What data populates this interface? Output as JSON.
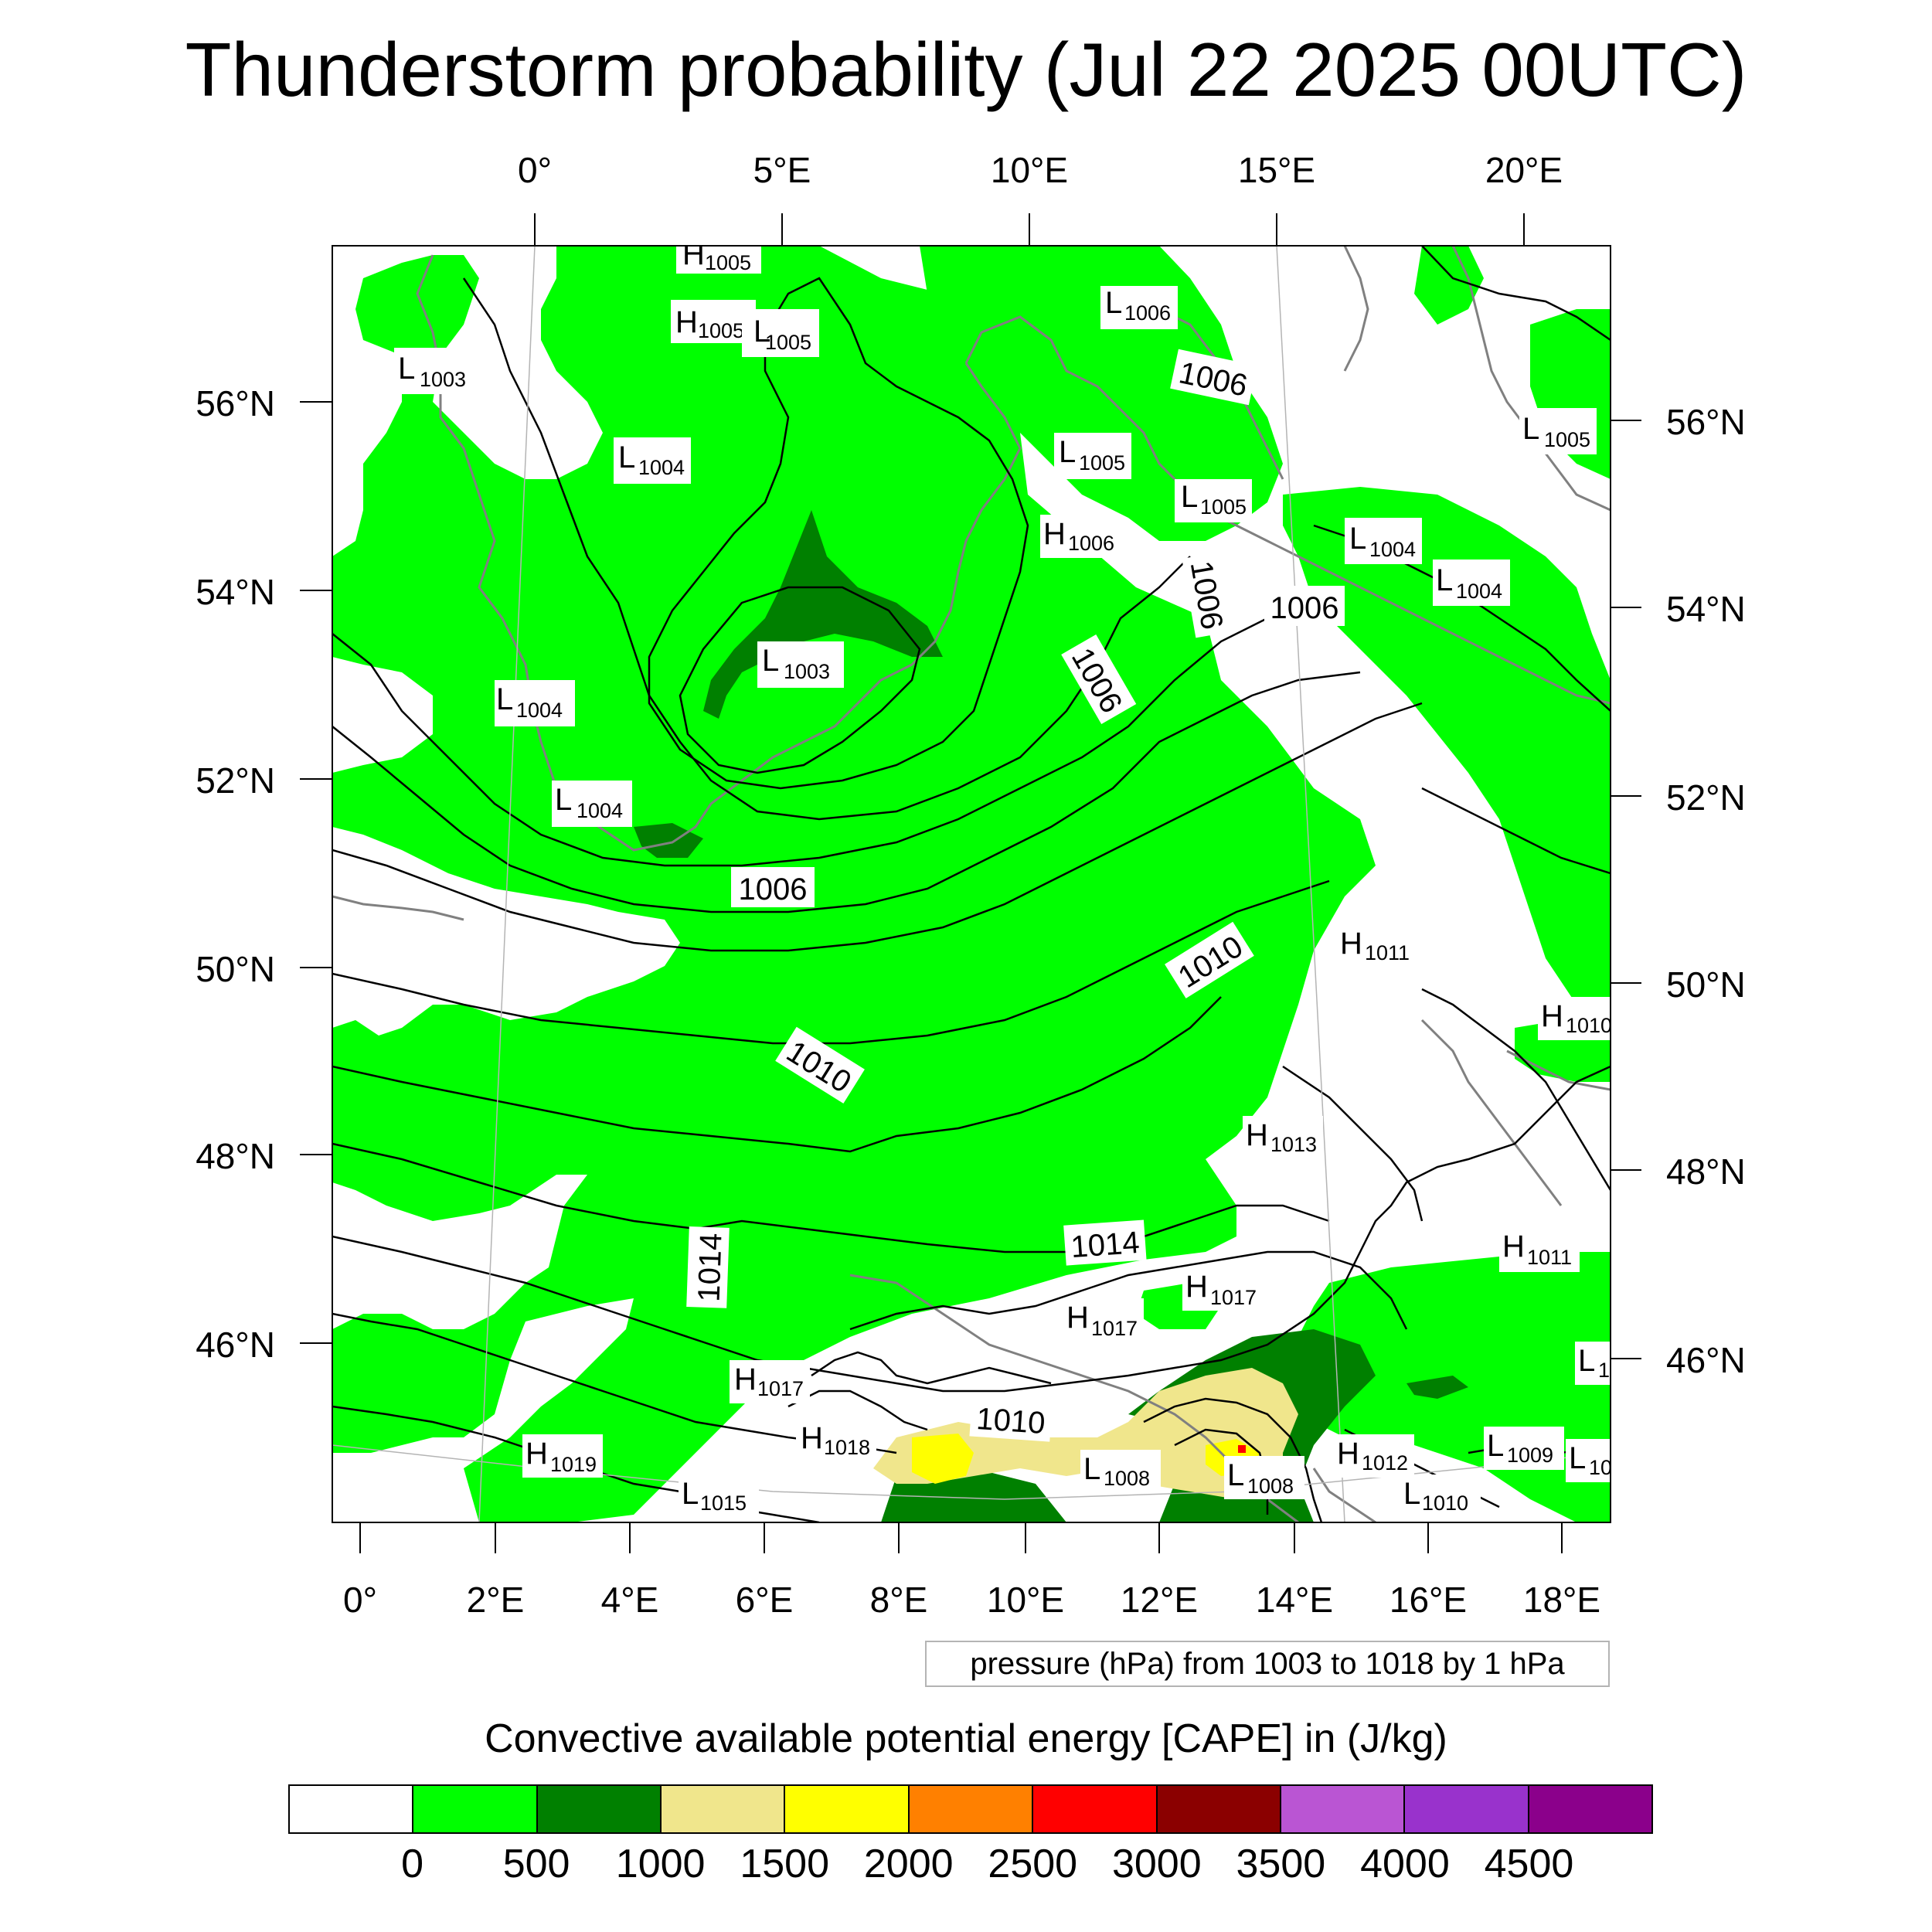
{
  "title": "Thunderstorm probability (Jul 22 2025 00UTC)",
  "top_lon_labels": [
    "0°",
    "5°E",
    "10°E",
    "15°E",
    "20°E"
  ],
  "bottom_lon_labels": [
    "0°",
    "2°E",
    "4°E",
    "6°E",
    "8°E",
    "10°E",
    "12°E",
    "14°E",
    "16°E",
    "18°E"
  ],
  "left_lat_labels": [
    "56°N",
    "54°N",
    "52°N",
    "50°N",
    "48°N",
    "46°N"
  ],
  "right_lat_labels": [
    "56°N",
    "54°N",
    "52°N",
    "50°N",
    "48°N",
    "46°N"
  ],
  "pressure_centers": [
    {
      "type": "H",
      "value": "1005"
    },
    {
      "type": "H",
      "value": "1005"
    },
    {
      "type": "L",
      "value": "1005"
    },
    {
      "type": "L",
      "value": "1006"
    },
    {
      "type": "L",
      "value": "1003"
    },
    {
      "type": "L",
      "value": "1004"
    },
    {
      "type": "L",
      "value": "1005"
    },
    {
      "type": "L",
      "value": "1005"
    },
    {
      "type": "H",
      "value": "1006"
    },
    {
      "type": "L",
      "value": "1004"
    },
    {
      "type": "L",
      "value": "1004"
    },
    {
      "type": "L",
      "value": "1005"
    },
    {
      "type": "L",
      "value": "1003"
    },
    {
      "type": "L",
      "value": "1004"
    },
    {
      "type": "L",
      "value": "1004"
    },
    {
      "type": "H",
      "value": "1011"
    },
    {
      "type": "H",
      "value": "1010"
    },
    {
      "type": "H",
      "value": "1013"
    },
    {
      "type": "H",
      "value": "1011"
    },
    {
      "type": "H",
      "value": "1017"
    },
    {
      "type": "H",
      "value": "1017"
    },
    {
      "type": "H",
      "value": "1017"
    },
    {
      "type": "H",
      "value": "1018"
    },
    {
      "type": "H",
      "value": "1019"
    },
    {
      "type": "L",
      "value": "1015"
    },
    {
      "type": "L",
      "value": "1008"
    },
    {
      "type": "L",
      "value": "1008"
    },
    {
      "type": "H",
      "value": "1012"
    },
    {
      "type": "L",
      "value": "1010"
    },
    {
      "type": "L",
      "value": "1009"
    },
    {
      "type": "L",
      "value": "10"
    },
    {
      "type": "L",
      "value": "1"
    }
  ],
  "isobar_labels": [
    "1006",
    "1006",
    "1006",
    "1006",
    "1006",
    "1010",
    "1010",
    "1014",
    "1014",
    "1010"
  ],
  "contour_note": "pressure (hPa) from 1003 to 1018 by 1 hPa",
  "colorbar": {
    "title": "Convective available potential energy [CAPE] in (J/kg)",
    "colors": [
      "#ffffff",
      "#00ff00",
      "#008000",
      "#f0e68c",
      "#ffff00",
      "#ff8000",
      "#ff0000",
      "#8b0000",
      "#ba55d3",
      "#9932cc",
      "#8b008b"
    ],
    "ticks": [
      "0",
      "500",
      "1000",
      "1500",
      "2000",
      "2500",
      "3000",
      "3500",
      "4000",
      "4500"
    ]
  },
  "colors": {
    "isobar": "#000000",
    "coastline": "#808080",
    "cape_0_500": "#00ff00",
    "cape_500_1000": "#008000",
    "cape_1000_1500": "#f0e68c",
    "cape_1500_2000": "#ffff00",
    "cape_3000_3500": "#ff0000"
  }
}
